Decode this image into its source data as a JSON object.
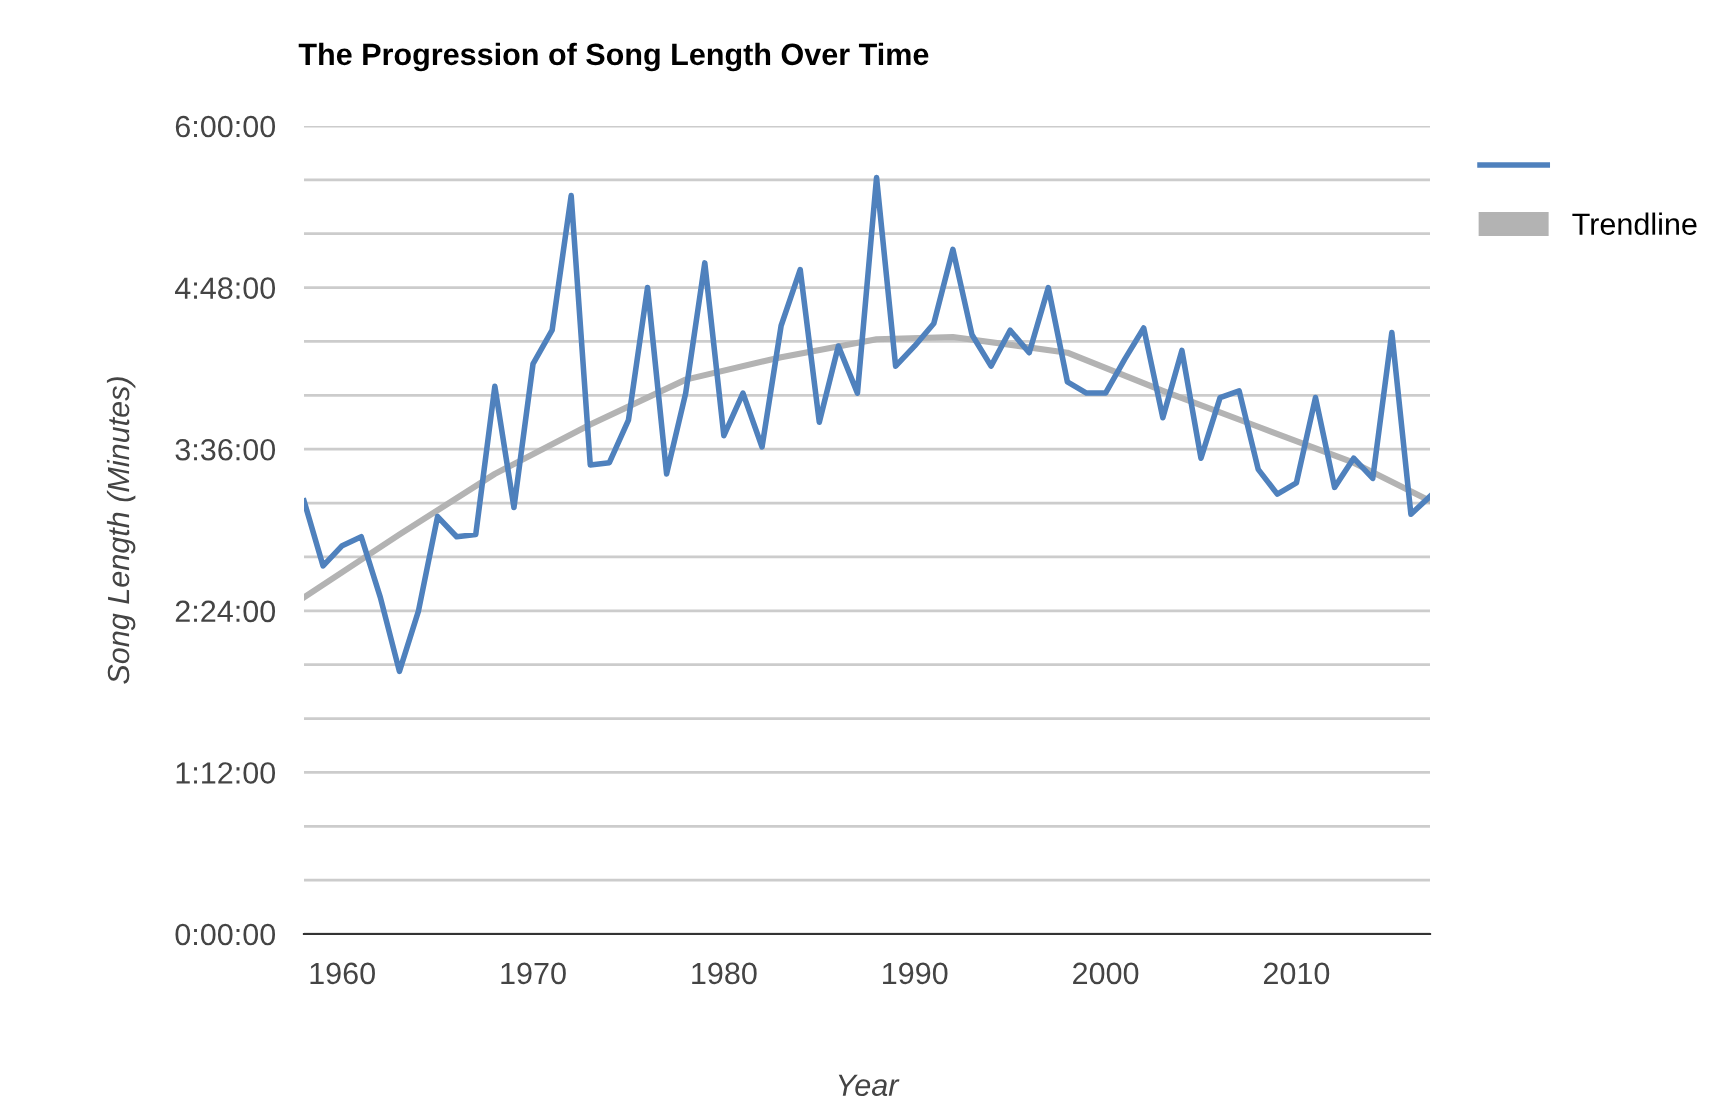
{
  "chart_data": {
    "type": "line",
    "title": "The Progression of Song Length Over Time",
    "xlabel": "Year",
    "ylabel": "Song Length (Minutes)",
    "x": [
      1958,
      1959,
      1960,
      1961,
      1962,
      1963,
      1964,
      1965,
      1966,
      1967,
      1968,
      1969,
      1970,
      1971,
      1972,
      1973,
      1974,
      1975,
      1976,
      1977,
      1978,
      1979,
      1980,
      1981,
      1982,
      1983,
      1984,
      1985,
      1986,
      1987,
      1988,
      1989,
      1990,
      1991,
      1992,
      1993,
      1994,
      1995,
      1996,
      1997,
      1998,
      1999,
      2000,
      2001,
      2002,
      2003,
      2004,
      2005,
      2006,
      2007,
      2008,
      2009,
      2010,
      2011,
      2012,
      2013,
      2014,
      2015,
      2016,
      2017
    ],
    "series": [
      {
        "color": "#4f81bd",
        "values": [
          193,
          164,
          173,
          177,
          150,
          117,
          144,
          186,
          177,
          178,
          244,
          190,
          254,
          269,
          329,
          209,
          210,
          229,
          288,
          205,
          241,
          299,
          222,
          241,
          217,
          271,
          296,
          228,
          262,
          241,
          337,
          253,
          262,
          272,
          305,
          267,
          253,
          269,
          259,
          288,
          246,
          241,
          241,
          256,
          270,
          230,
          260,
          212,
          239,
          242,
          207,
          196,
          201,
          239,
          199,
          212,
          203,
          268,
          187,
          195
        ]
      },
      {
        "name": "Trendline",
        "color": "#b3b3b3",
        "type": "line",
        "x": [
          1958,
          1963,
          1968,
          1973,
          1978,
          1983,
          1988,
          1992,
          1998,
          2003,
          2008,
          2013,
          2017
        ],
        "values": [
          150,
          178,
          205,
          227,
          247,
          257,
          265,
          266,
          259,
          242,
          226,
          210,
          193
        ]
      }
    ],
    "xlim": [
      1958,
      2017
    ],
    "xticks": [
      1960,
      1970,
      1980,
      1990,
      2000,
      2010
    ],
    "ylim": [
      0,
      360
    ],
    "yticks": [
      {
        "value": 0,
        "label": "0:00:00"
      },
      {
        "value": 24,
        "label": null
      },
      {
        "value": 48,
        "label": null
      },
      {
        "value": 72,
        "label": "1:12:00"
      },
      {
        "value": 96,
        "label": null
      },
      {
        "value": 120,
        "label": null
      },
      {
        "value": 144,
        "label": "2:24:00"
      },
      {
        "value": 168,
        "label": null
      },
      {
        "value": 192,
        "label": null
      },
      {
        "value": 216,
        "label": "3:36:00"
      },
      {
        "value": 240,
        "label": null
      },
      {
        "value": 264,
        "label": null
      },
      {
        "value": 288,
        "label": "4:48:00"
      },
      {
        "value": 312,
        "label": null
      },
      {
        "value": 336,
        "label": null
      },
      {
        "value": 360,
        "label": "6:00:00"
      }
    ],
    "grid": "y",
    "legend": "top right",
    "marker": "none",
    "line_style": "solid"
  }
}
